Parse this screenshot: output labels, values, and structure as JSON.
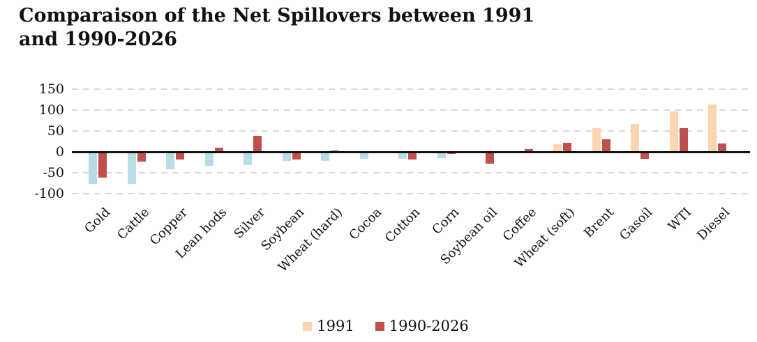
{
  "chart_data": {
    "type": "bar",
    "title": "Comparaison of the Net Spillovers between 1991 and 1990-2026",
    "categories": [
      "Gold",
      "Cattle",
      "Copper",
      "Lean hods",
      "Silver",
      "Soybean",
      "Wheat (hard)",
      "Cocoa",
      "Cotton",
      "Corn",
      "Soybean oil",
      "Coffee",
      "Wheat (soft)",
      "Brent",
      "Gasoil",
      "WTI",
      "Diesel"
    ],
    "series": [
      {
        "name": "1991",
        "values": [
          -77,
          -77,
          -42,
          -33,
          -32,
          -21,
          -21,
          -17,
          -16,
          -15,
          0,
          0,
          18,
          57,
          66,
          97,
          113
        ]
      },
      {
        "name": "1990-2026",
        "values": [
          -62,
          -24,
          -18,
          10,
          38,
          -18,
          4,
          0,
          -19,
          -5,
          -28,
          6,
          22,
          30,
          -16,
          57,
          20
        ]
      }
    ],
    "xlabel": "",
    "ylabel": "",
    "ylim": [
      -100,
      150
    ],
    "yticks": [
      150,
      100,
      50,
      0,
      -50,
      -100
    ],
    "grid": "horizontal-dashed",
    "legend_position": "bottom",
    "colors": {
      "series1_positive": "#fbd5af",
      "series1_negative": "#b9dde7",
      "series2": "#c0504d",
      "gridline": "#d9d9d9",
      "zero_line": "#111111",
      "text": "#111111"
    }
  }
}
